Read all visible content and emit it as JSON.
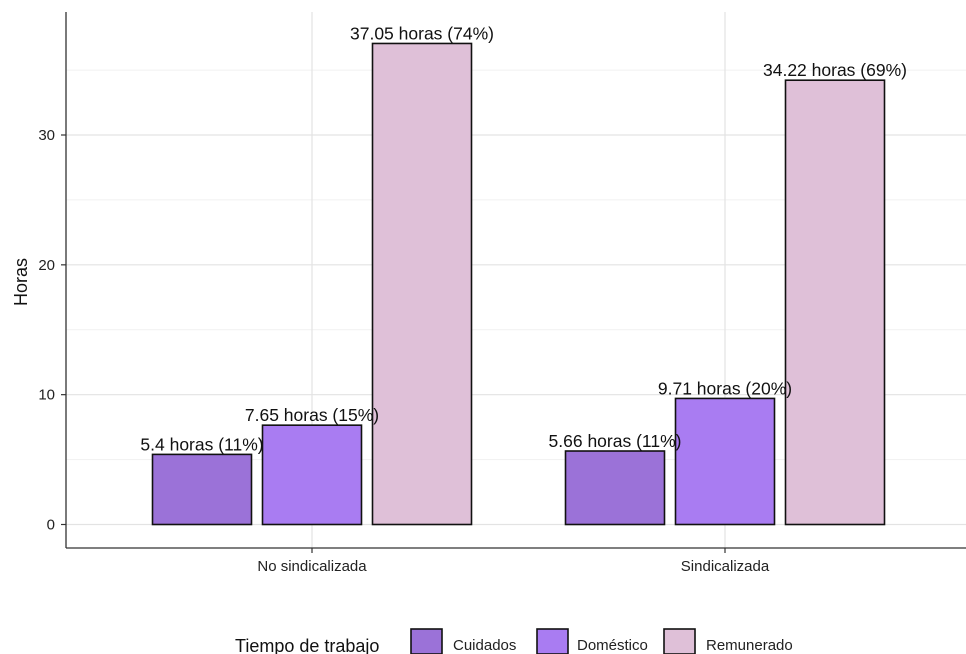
{
  "chart_data": {
    "type": "bar",
    "title": "",
    "xlabel": "",
    "ylabel": "Horas",
    "ylim": [
      0,
      38.6
    ],
    "yticks": [
      0,
      10,
      20,
      30
    ],
    "grid": true,
    "legend_position": "bottom",
    "legend_title": "Tiempo de trabajo",
    "categories": [
      "No sindicalizada",
      "Sindicalizada"
    ],
    "series": [
      {
        "name": "Cuidados",
        "color": "#9b72d8",
        "values": [
          5.4,
          5.66
        ],
        "labels": [
          "5.4 horas (11%)",
          "5.66 horas (11%)"
        ]
      },
      {
        "name": "Doméstico",
        "color": "#a97cf2",
        "values": [
          7.65,
          9.71
        ],
        "labels": [
          "7.65 horas (15%)",
          "9.71 horas (20%)"
        ]
      },
      {
        "name": "Remunerado",
        "color": "#dfc0d8",
        "values": [
          37.05,
          34.22
        ],
        "labels": [
          "37.05 horas (74%)",
          "34.22 horas (69%)"
        ]
      }
    ]
  }
}
